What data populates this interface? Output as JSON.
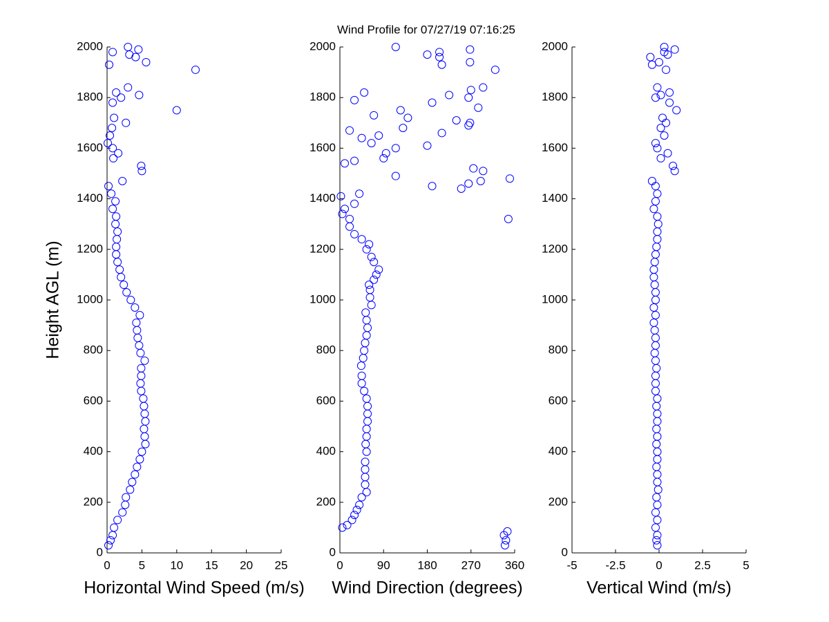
{
  "chart_data": [
    {
      "type": "scatter",
      "title": "Wind Profile for  07/27/19 07:16:25",
      "xlabel": "Horizontal Wind Speed (m/s)",
      "ylabel": "Height AGL (m)",
      "color": "#0000ff",
      "xlim": [
        0,
        25
      ],
      "xticks": [
        0,
        5,
        10,
        15,
        20,
        25
      ],
      "ylim": [
        0,
        2000
      ],
      "yticks": [
        0,
        200,
        400,
        600,
        800,
        1000,
        1200,
        1400,
        1600,
        1800,
        2000
      ],
      "x": [
        0.2,
        0.5,
        0.8,
        1,
        1.5,
        2.2,
        2.6,
        2.7,
        3.3,
        3.6,
        4,
        4.3,
        4.7,
        5,
        5.5,
        5.4,
        5.3,
        5.5,
        5.4,
        5.3,
        5.2,
        4.9,
        4.8,
        4.9,
        4.9,
        5.4,
        4.8,
        4.6,
        4.4,
        4.3,
        4.2,
        4.7,
        4,
        3.4,
        2.8,
        2.4,
        2,
        1.8,
        1.5,
        1.3,
        1.3,
        1.4,
        1.5,
        1.2,
        1.3,
        0.8,
        1.2,
        0.6,
        0.2,
        2.2,
        5,
        4.9,
        0.9,
        1.6,
        0.8,
        0.1,
        0.4,
        0.7,
        2.7,
        1,
        10,
        0.8,
        2,
        4.6,
        1.3,
        3,
        12.7,
        0.3,
        5.6,
        4.1,
        3.2,
        0.8,
        4.5,
        3
      ],
      "y": [
        30,
        50,
        70,
        100,
        130,
        160,
        190,
        220,
        250,
        280,
        310,
        340,
        370,
        400,
        430,
        460,
        490,
        520,
        550,
        580,
        610,
        640,
        670,
        700,
        730,
        760,
        790,
        820,
        850,
        880,
        910,
        940,
        970,
        1000,
        1030,
        1060,
        1090,
        1120,
        1150,
        1180,
        1210,
        1240,
        1270,
        1300,
        1330,
        1360,
        1390,
        1420,
        1450,
        1470,
        1510,
        1530,
        1560,
        1580,
        1600,
        1620,
        1650,
        1680,
        1700,
        1720,
        1750,
        1780,
        1800,
        1810,
        1820,
        1840,
        1910,
        1930,
        1940,
        1960,
        1970,
        1980,
        1990,
        2000
      ]
    },
    {
      "type": "scatter",
      "xlabel": "Wind Direction (degrees)",
      "color": "#0000ff",
      "xlim": [
        0,
        360
      ],
      "xticks": [
        0,
        90,
        180,
        270,
        360
      ],
      "ylim": [
        0,
        2000
      ],
      "yticks": [
        0,
        200,
        400,
        600,
        800,
        1000,
        1200,
        1400,
        1600,
        1800,
        2000
      ],
      "x": [
        340,
        342,
        338,
        345,
        5,
        15,
        25,
        30,
        35,
        40,
        45,
        55,
        52,
        52,
        52,
        52,
        55,
        53,
        55,
        55,
        57,
        57,
        57,
        55,
        50,
        45,
        45,
        44,
        48,
        50,
        52,
        55,
        57,
        55,
        53,
        65,
        62,
        62,
        60,
        70,
        75,
        80,
        70,
        65,
        55,
        60,
        45,
        30,
        20,
        20,
        5,
        10,
        30,
        2,
        40,
        250,
        190,
        265,
        290,
        350,
        115,
        295,
        275,
        10,
        30,
        90,
        95,
        115,
        180,
        65,
        45,
        80,
        210,
        20,
        130,
        265,
        268,
        240,
        140,
        70,
        125,
        285,
        190,
        30,
        265,
        225,
        50,
        270,
        295,
        320,
        210,
        268,
        205,
        180,
        205,
        268,
        115,
        347
      ],
      "y": [
        30,
        50,
        70,
        85,
        100,
        110,
        130,
        150,
        170,
        190,
        220,
        240,
        270,
        300,
        330,
        360,
        400,
        430,
        460,
        490,
        520,
        550,
        580,
        610,
        640,
        670,
        700,
        740,
        770,
        800,
        830,
        860,
        890,
        920,
        950,
        980,
        1010,
        1040,
        1060,
        1080,
        1100,
        1120,
        1150,
        1170,
        1200,
        1220,
        1240,
        1260,
        1290,
        1320,
        1340,
        1360,
        1380,
        1410,
        1420,
        1440,
        1450,
        1460,
        1470,
        1480,
        1490,
        1510,
        1520,
        1540,
        1550,
        1560,
        1580,
        1600,
        1610,
        1620,
        1640,
        1650,
        1660,
        1670,
        1680,
        1690,
        1700,
        1710,
        1720,
        1730,
        1750,
        1760,
        1780,
        1790,
        1800,
        1810,
        1820,
        1830,
        1840,
        1910,
        1930,
        1940,
        1960,
        1970,
        1980,
        1990,
        2000,
        1320
      ]
    },
    {
      "type": "scatter",
      "xlabel": "Vertical Wind (m/s)",
      "color": "#0000ff",
      "xlim": [
        -5,
        5
      ],
      "xticks": [
        -5,
        -2.5,
        0,
        2.5,
        5
      ],
      "ylim": [
        0,
        2000
      ],
      "yticks": [
        0,
        200,
        400,
        600,
        800,
        1000,
        1200,
        1400,
        1600,
        1800,
        2000
      ],
      "x": [
        -0.1,
        -0.15,
        -0.1,
        -0.2,
        -0.1,
        -0.2,
        -0.1,
        -0.15,
        -0.05,
        -0.1,
        -0.1,
        -0.15,
        -0.1,
        -0.1,
        -0.15,
        -0.1,
        -0.15,
        -0.1,
        -0.1,
        -0.15,
        -0.1,
        -0.2,
        -0.2,
        -0.2,
        -0.15,
        -0.2,
        -0.25,
        -0.2,
        -0.2,
        -0.25,
        -0.3,
        -0.2,
        -0.3,
        -0.2,
        -0.2,
        -0.25,
        -0.3,
        -0.3,
        -0.25,
        -0.2,
        -0.15,
        -0.1,
        -0.1,
        -0.05,
        -0.1,
        -0.3,
        -0.2,
        -0.1,
        -0.2,
        -0.4,
        0.9,
        0.8,
        0.1,
        0.5,
        -0.1,
        -0.2,
        0.3,
        0.1,
        0.4,
        0.2,
        1,
        0.6,
        -0.2,
        0.1,
        0.6,
        -0.1,
        0.4,
        -0.4,
        0,
        -0.5,
        0.5,
        0.3,
        0.9,
        0.3
      ],
      "y": [
        30,
        50,
        70,
        100,
        130,
        160,
        190,
        220,
        250,
        280,
        310,
        340,
        370,
        400,
        430,
        460,
        490,
        520,
        550,
        580,
        610,
        640,
        670,
        700,
        730,
        760,
        790,
        820,
        850,
        880,
        910,
        940,
        970,
        1000,
        1030,
        1060,
        1090,
        1120,
        1150,
        1180,
        1210,
        1240,
        1270,
        1300,
        1330,
        1360,
        1390,
        1420,
        1450,
        1470,
        1510,
        1530,
        1560,
        1580,
        1600,
        1620,
        1650,
        1680,
        1700,
        1720,
        1750,
        1780,
        1800,
        1810,
        1820,
        1840,
        1910,
        1930,
        1940,
        1960,
        1970,
        1980,
        1990,
        2000
      ]
    }
  ]
}
